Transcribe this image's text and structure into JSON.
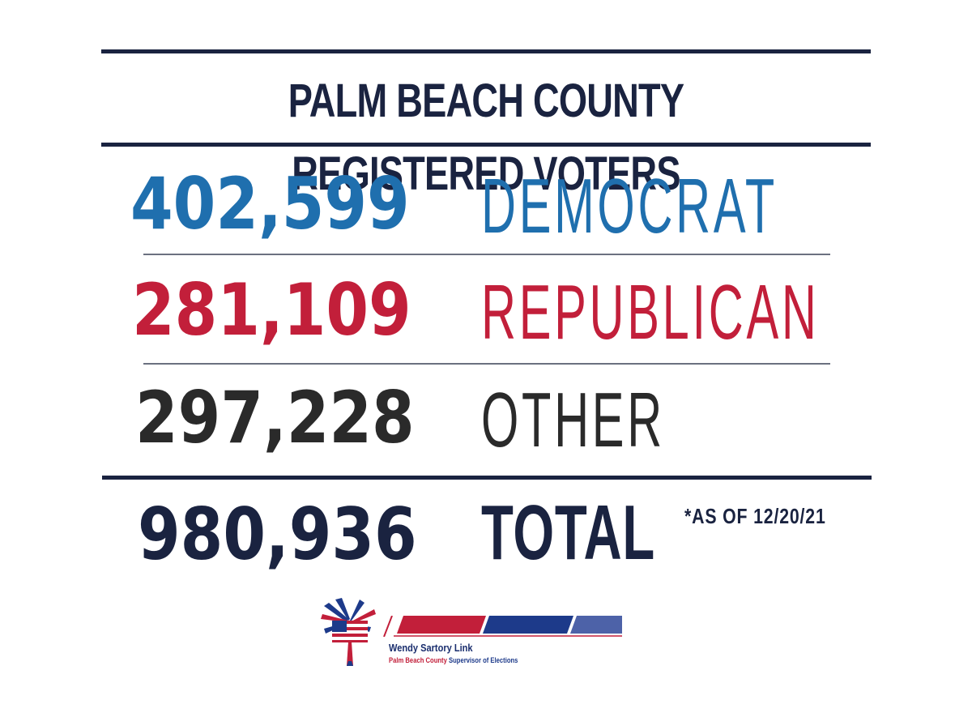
{
  "title": "PALM BEACH COUNTY REGISTERED VOTERS",
  "rows": [
    {
      "count": "402,599",
      "party": "DEMOCRAT",
      "color": "#1f6fae"
    },
    {
      "count": "281,109",
      "party": "REPUBLICAN",
      "color": "#c21f3a"
    },
    {
      "count": "297,228",
      "party": "OTHER",
      "color": "#2a2a2a"
    }
  ],
  "total": {
    "count": "980,936",
    "label": "TOTAL",
    "color": "#1a2340"
  },
  "note": "*AS OF 12/20/21",
  "logo": {
    "name": "Wendy Sartory Link",
    "subtitle_part1": "Palm Beach County",
    "subtitle_part2": "Supervisor of Elections",
    "icon": "palm-tree-flag-icon",
    "colors": {
      "red": "#c21f3a",
      "navy": "#1d3a8a",
      "blue": "#4d62a8"
    }
  }
}
